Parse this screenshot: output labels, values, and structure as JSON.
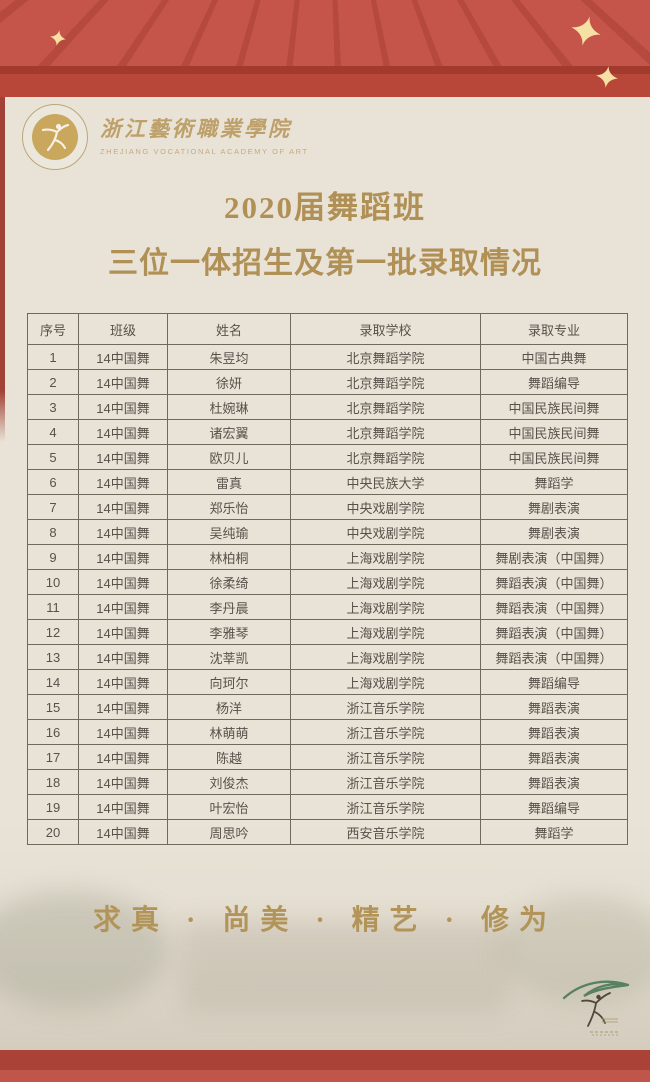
{
  "header": {
    "logo": {
      "name_zh": "浙江藝術職業學院",
      "name_en": "ZHEJIANG VOCATIONAL ACADEMY OF ART"
    },
    "title_line1": "2020届舞蹈班",
    "title_line2": "三位一体招生及第一批录取情况"
  },
  "table": {
    "columns": [
      "序号",
      "班级",
      "姓名",
      "录取学校",
      "录取专业"
    ],
    "rows": [
      [
        "1",
        "14中国舞",
        "朱昱均",
        "北京舞蹈学院",
        "中国古典舞"
      ],
      [
        "2",
        "14中国舞",
        "徐妍",
        "北京舞蹈学院",
        "舞蹈编导"
      ],
      [
        "3",
        "14中国舞",
        "杜婉琳",
        "北京舞蹈学院",
        "中国民族民间舞"
      ],
      [
        "4",
        "14中国舞",
        "诸宏翼",
        "北京舞蹈学院",
        "中国民族民间舞"
      ],
      [
        "5",
        "14中国舞",
        "欧贝儿",
        "北京舞蹈学院",
        "中国民族民间舞"
      ],
      [
        "6",
        "14中国舞",
        "雷真",
        "中央民族大学",
        "舞蹈学"
      ],
      [
        "7",
        "14中国舞",
        "郑乐怡",
        "中央戏剧学院",
        "舞剧表演"
      ],
      [
        "8",
        "14中国舞",
        "吴纯瑜",
        "中央戏剧学院",
        "舞剧表演"
      ],
      [
        "9",
        "14中国舞",
        "林柏桐",
        "上海戏剧学院",
        "舞剧表演（中国舞）"
      ],
      [
        "10",
        "14中国舞",
        "徐柔绮",
        "上海戏剧学院",
        "舞蹈表演（中国舞）"
      ],
      [
        "11",
        "14中国舞",
        "李丹晨",
        "上海戏剧学院",
        "舞蹈表演（中国舞）"
      ],
      [
        "12",
        "14中国舞",
        "李雅琴",
        "上海戏剧学院",
        "舞蹈表演（中国舞）"
      ],
      [
        "13",
        "14中国舞",
        "沈莘凯",
        "上海戏剧学院",
        "舞蹈表演（中国舞）"
      ],
      [
        "14",
        "14中国舞",
        "向珂尔",
        "上海戏剧学院",
        "舞蹈编导"
      ],
      [
        "15",
        "14中国舞",
        "杨洋",
        "浙江音乐学院",
        "舞蹈表演"
      ],
      [
        "16",
        "14中国舞",
        "林萌萌",
        "浙江音乐学院",
        "舞蹈表演"
      ],
      [
        "17",
        "14中国舞",
        "陈越",
        "浙江音乐学院",
        "舞蹈表演"
      ],
      [
        "18",
        "14中国舞",
        "刘俊杰",
        "浙江音乐学院",
        "舞蹈表演"
      ],
      [
        "19",
        "14中国舞",
        "叶宏怡",
        "浙江音乐学院",
        "舞蹈编导"
      ],
      [
        "20",
        "14中国舞",
        "周思吟",
        "西安音乐学院",
        "舞蹈学"
      ]
    ]
  },
  "footer": {
    "slogan": "求真 · 尚美 · 精艺 · 修为"
  },
  "colors": {
    "banner_red": "#c45246",
    "banner_dark_stripe": "#a23a2e",
    "banner_sub_red": "#b8473a",
    "bottom_band_red": "#aa4237",
    "bottom_band_light_red": "#c0564a",
    "background_cream": "#e9e3d7",
    "title_gold": "#b09055",
    "logo_gold": "#bda06a",
    "seal_disc_gold": "#c9a75d",
    "sparkle_cream": "#f6e0a3",
    "table_text": "#57514b",
    "table_border": "#6f695e",
    "slogan_gold": "#b29459",
    "dancer_mark_green": "#4c7a58"
  }
}
